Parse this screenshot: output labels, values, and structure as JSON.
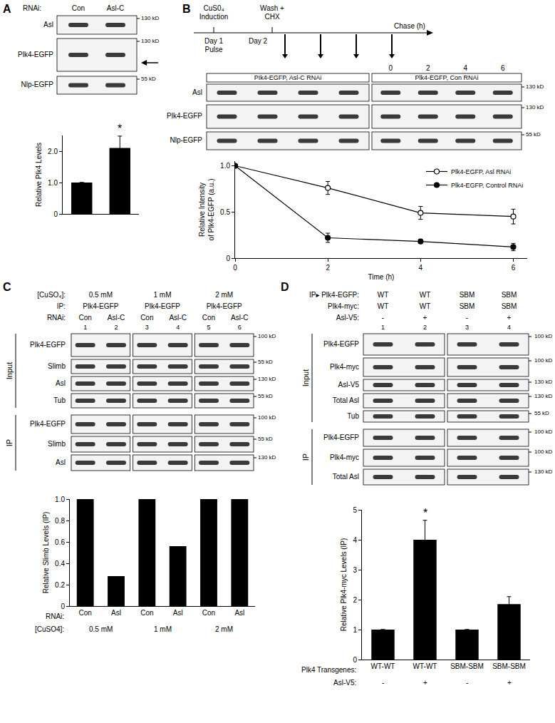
{
  "chart_data": [
    {
      "type": "bar",
      "categories": [
        null,
        null
      ],
      "values": [
        1.0,
        2.1
      ],
      "errors": [
        0,
        0.38
      ],
      "color": "#000000",
      "y_label": "Relative Plk4 Levels",
      "ylim": [
        0,
        2.5
      ],
      "yticks": [
        0,
        {
          "value": 1,
          "label": "1.0"
        },
        {
          "value": 2,
          "label": "2.0"
        }
      ],
      "annotations": [
        {
          "text": "*",
          "x": 1
        }
      ]
    },
    {
      "type": "line",
      "x": [
        0,
        2,
        4,
        6
      ],
      "series": [
        {
          "name": "Plk4-EGFP, Asl RNAi",
          "color": "#000000",
          "marker": "open",
          "values": [
            1.0,
            0.76,
            0.49,
            0.45
          ],
          "errors": [
            0,
            0.07,
            0.07,
            0.08
          ]
        },
        {
          "name": "Plk4-EGFP, Control RNAi",
          "color": "#000000",
          "marker": "filled",
          "values": [
            1.0,
            0.22,
            0.18,
            0.12
          ],
          "errors": [
            0,
            0.05,
            0.01,
            0.04
          ]
        }
      ],
      "x_label": "Time (h)",
      "y_label": "Relative Intensity\nof Plk4-EGFP (a.u.)",
      "xlim": [
        0,
        6.3
      ],
      "ylim": [
        0,
        1.05
      ],
      "xticks": [
        0,
        2,
        4,
        6
      ],
      "yticks": [
        0,
        0.5,
        {
          "value": 1,
          "label": "1.0"
        }
      ],
      "legend": "upper right"
    },
    {
      "type": "bar",
      "categories": [
        "Con",
        "Asl",
        "Con",
        "Asl",
        "Con",
        "Asl"
      ],
      "x_label": "RNAi:",
      "group_label": "[CuSO4]:",
      "groups": [
        "0.5 mM",
        "1 mM",
        "2 mM"
      ],
      "values": [
        1,
        0.28,
        1,
        0.56,
        1,
        1
      ],
      "color": "#000000",
      "y_label": "Relative Slimb Levels (IP)",
      "ylim": [
        0,
        1
      ],
      "yticks": [
        0,
        0.2,
        0.4,
        0.6,
        0.8,
        {
          "value": 1,
          "label": "1.0"
        }
      ]
    },
    {
      "type": "bar",
      "categories": [
        "WT-WT",
        "WT-WT",
        "SBM-SBM",
        "SBM-SBM"
      ],
      "x_label": "Plk4 Transgenes:",
      "rows": [
        {
          "label": "Asl-V5:",
          "values": [
            "-",
            "+",
            "-",
            "+"
          ]
        }
      ],
      "values": [
        1,
        4.0,
        1,
        1.85
      ],
      "errors": [
        0,
        0.65,
        0,
        0.25
      ],
      "color": "#000000",
      "y_label": "Relative Plk4-myc Levels (IP)",
      "ylim": [
        0,
        5
      ],
      "yticks": [
        0,
        1,
        2,
        3,
        4,
        5
      ],
      "annotations": [
        {
          "text": "*",
          "x": 1
        }
      ]
    }
  ],
  "figure": {
    "A": {
      "label": "A",
      "lane_header": "RNAi:",
      "lanes": [
        "Con",
        "Asl-C"
      ],
      "rows": [
        {
          "name": "Asl",
          "kd": "130 kD"
        },
        {
          "name": "Plk4-EGFP",
          "kd": "130 kD"
        },
        {
          "name": "Nlp-EGFP",
          "kd": "55 kD"
        }
      ]
    },
    "B": {
      "label": "B",
      "timeline": {
        "induction": "CuS0₄\nInduction",
        "wash": "Wash +\nCHX",
        "day1": "Day 1",
        "pulse": "Pulse",
        "day2": "Day 2",
        "chase": "Chase (h)"
      },
      "lanes": [
        "0",
        "2",
        "4",
        "6"
      ],
      "groups": [
        "PIk4-EGFP, Asl-C RNAi",
        "Plk4-EGFP, Con RNAi"
      ],
      "rows": [
        {
          "name": "Asl",
          "kd": "130 kD"
        },
        {
          "name": "Plk4-EGFP",
          "kd": "130 kD"
        },
        {
          "name": "Nlp-EGFP",
          "kd": "55 kD"
        }
      ]
    },
    "C": {
      "label": "C",
      "header_rows": [
        {
          "label": "[CuSO₄]:",
          "values": [
            "0.5 mM",
            "1 mM",
            "2 mM"
          ]
        },
        {
          "label": "IP:",
          "values": [
            "Plk4-EGFP",
            "Plk4-EGFP",
            "Plk4-EGFP"
          ]
        },
        {
          "label": "RNAi:",
          "values": [
            "Con",
            "Asl-C",
            "Con",
            "Asl-C",
            "Con",
            "Asl-C"
          ]
        }
      ],
      "lanes": [
        "1",
        "2",
        "3",
        "4",
        "5",
        "6"
      ],
      "sections": [
        {
          "name": "Input",
          "rows": [
            {
              "name": "Plk4-EGFP",
              "kd": "100 kD"
            },
            {
              "name": "Slimb",
              "kd": "55 kD"
            },
            {
              "name": "Asl",
              "kd": "130 kD"
            },
            {
              "name": "Tub",
              "kd": "55 kD"
            }
          ]
        },
        {
          "name": "IP",
          "rows": [
            {
              "name": "Plk4-EGFP",
              "kd": "100 kD"
            },
            {
              "name": "Slimb",
              "kd": "55 kD"
            },
            {
              "name": "Asl",
              "kd": "130 kD"
            }
          ]
        }
      ]
    },
    "D": {
      "label": "D",
      "header_rows": [
        {
          "label": "IP▸ Plk4-EGFP:",
          "values": [
            "WT",
            "WT",
            "SBM",
            "SBM"
          ]
        },
        {
          "label": "Plk4-myc:",
          "values": [
            "WT",
            "WT",
            "SBM",
            "SBM"
          ]
        },
        {
          "label": "Asl-V5:",
          "values": [
            "-",
            "+",
            "-",
            "+"
          ]
        }
      ],
      "lanes": [
        "1",
        "2",
        "3",
        "4"
      ],
      "sections": [
        {
          "name": "Input",
          "rows": [
            {
              "name": "Plk4-EGFP",
              "kd": "100 kD"
            },
            {
              "name": "Plk4-myc",
              "kd": "100 kD"
            },
            {
              "name": "Asl-V5",
              "kd": "130 kD"
            },
            {
              "name": "Total Asl",
              "kd": "130 kD"
            },
            {
              "name": "Tub",
              "kd": "55 kD"
            }
          ]
        },
        {
          "name": "IP",
          "rows": [
            {
              "name": "Plk4-EGFP",
              "kd": "100 kD"
            },
            {
              "name": "Plk4-myc",
              "kd": "100 kD"
            },
            {
              "name": "Total Asl",
              "kd": "130 kD"
            }
          ]
        }
      ]
    }
  }
}
